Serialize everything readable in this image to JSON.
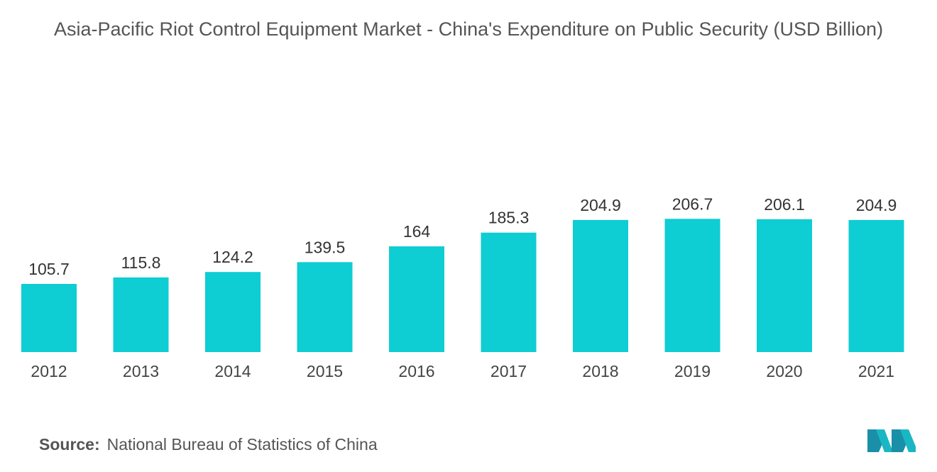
{
  "chart_data": {
    "type": "bar",
    "title": "Asia-Pacific Riot Control Equipment Market - China's Expenditure on Public Security (USD Billion)",
    "categories": [
      "2012",
      "2013",
      "2014",
      "2015",
      "2016",
      "2017",
      "2018",
      "2019",
      "2020",
      "2021"
    ],
    "values": [
      105.7,
      115.8,
      124.2,
      139.5,
      164,
      185.3,
      204.9,
      206.7,
      206.1,
      204.9
    ],
    "color": "#0ecdd3"
  },
  "source_label": "Source:",
  "source": "National Bureau of Statistics of China"
}
